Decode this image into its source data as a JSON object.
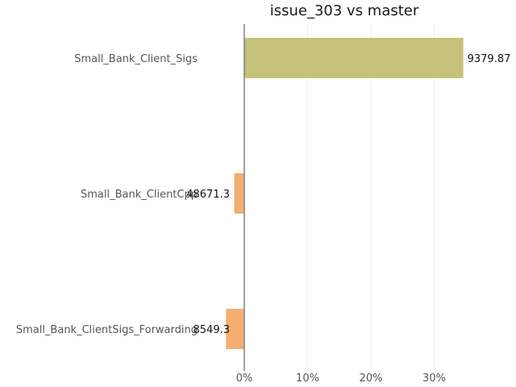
{
  "chart_data": {
    "type": "bar",
    "orientation": "horizontal",
    "title": "issue_303 vs master",
    "xlabel": "",
    "ylabel": "",
    "x_unit": "%",
    "xlim": [
      -3.5,
      40
    ],
    "xticks": [
      0,
      10,
      20,
      30
    ],
    "xtick_labels": [
      "0%",
      "10%",
      "20%",
      "30%"
    ],
    "grid": true,
    "legend": "none",
    "categories": [
      "Small_Bank_Client_Sigs",
      "Small_Bank_ClientCpp",
      "Small_Bank_ClientSigs_Forwarding"
    ],
    "values": [
      34.6,
      -1.6,
      -2.9
    ],
    "value_labels": [
      "9379.87",
      "48671.3",
      "8549.3"
    ],
    "colors": {
      "positive": "#c5c17a",
      "negative": "#f5ae72",
      "axis": "#808080",
      "grid": "#eeeeee"
    }
  }
}
